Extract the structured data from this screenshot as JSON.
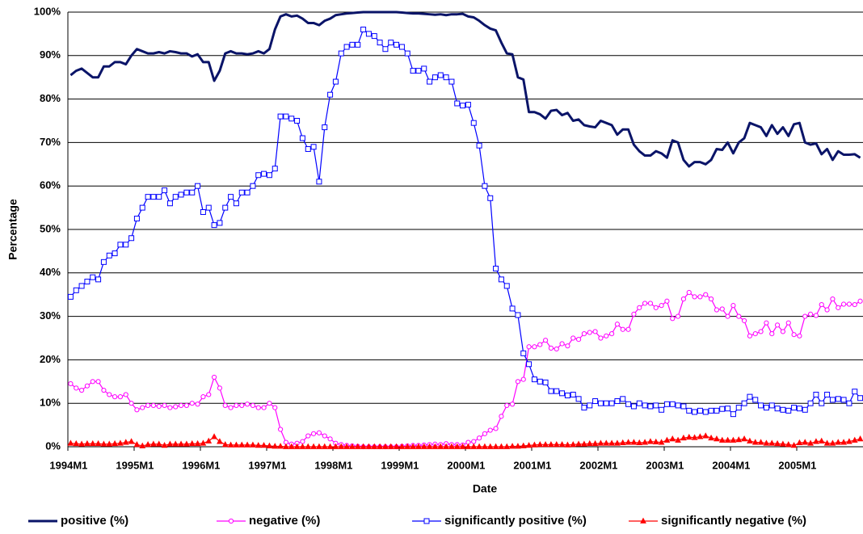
{
  "chart_data": {
    "type": "line",
    "x_label": "Date",
    "y_label": "Percentage",
    "categories": [
      "1994M1",
      null,
      null,
      null,
      null,
      null,
      null,
      null,
      null,
      null,
      null,
      null,
      "1995M1",
      null,
      null,
      null,
      null,
      null,
      null,
      null,
      null,
      null,
      null,
      null,
      "1996M1",
      null,
      null,
      null,
      null,
      null,
      null,
      null,
      null,
      null,
      null,
      null,
      "1997M1",
      null,
      null,
      null,
      null,
      null,
      null,
      null,
      null,
      null,
      null,
      null,
      "1998M1",
      null,
      null,
      null,
      null,
      null,
      null,
      null,
      null,
      null,
      null,
      null,
      "1999M1",
      null,
      null,
      null,
      null,
      null,
      null,
      null,
      null,
      null,
      null,
      null,
      "2000M1",
      null,
      null,
      null,
      null,
      null,
      null,
      null,
      null,
      null,
      null,
      null,
      "2001M1",
      null,
      null,
      null,
      null,
      null,
      null,
      null,
      null,
      null,
      null,
      null,
      "2002M1",
      null,
      null,
      null,
      null,
      null,
      null,
      null,
      null,
      null,
      null,
      null,
      "2003M1",
      null,
      null,
      null,
      null,
      null,
      null,
      null,
      null,
      null,
      null,
      null,
      "2004M1",
      null,
      null,
      null,
      null,
      null,
      null,
      null,
      null,
      null,
      null,
      null,
      "2005M1",
      null,
      null,
      null,
      null,
      null,
      null,
      null,
      null,
      null,
      null,
      null
    ],
    "ylim": [
      0,
      100
    ],
    "yticks": [
      {
        "value": 0,
        "label": "0%"
      },
      {
        "value": 10,
        "label": "10%"
      },
      {
        "value": 20,
        "label": "20%"
      },
      {
        "value": 30,
        "label": "30%"
      },
      {
        "value": 40,
        "label": "40%"
      },
      {
        "value": 50,
        "label": "50%"
      },
      {
        "value": 60,
        "label": "60%"
      },
      {
        "value": 70,
        "label": "70%"
      },
      {
        "value": 80,
        "label": "80%"
      },
      {
        "value": 90,
        "label": "90%"
      },
      {
        "value": 100,
        "label": "100%"
      }
    ],
    "grid": true,
    "legend": "bottom",
    "series": [
      {
        "name": "positive (%)",
        "color": "#0a1468",
        "marker": "none",
        "values": [
          85.5,
          86.5,
          87,
          86,
          85,
          85,
          87.5,
          87.5,
          88.5,
          88.5,
          88,
          90,
          91.5,
          91,
          90.5,
          90.5,
          90.8,
          90.5,
          91,
          90.8,
          90.5,
          90.5,
          89.8,
          90.3,
          88.5,
          88.5,
          84.2,
          86.5,
          90.5,
          91,
          90.5,
          90.5,
          90.3,
          90.5,
          91,
          90.5,
          91.5,
          96,
          99,
          99.5,
          99,
          99.2,
          98.5,
          97.5,
          97.5,
          97,
          98,
          98.5,
          99.3,
          99.5,
          99.7,
          99.8,
          99.9,
          100,
          100,
          100,
          100,
          100,
          100,
          100,
          99.9,
          99.8,
          99.7,
          99.7,
          99.6,
          99.5,
          99.4,
          99.5,
          99.3,
          99.5,
          99.5,
          99.6,
          99,
          98.8,
          98,
          97,
          96.2,
          95.8,
          93,
          90.5,
          90.3,
          85,
          84.5,
          77,
          77,
          76.5,
          75.5,
          77.3,
          77.5,
          76.3,
          76.8,
          75,
          75.3,
          74,
          73.7,
          73.5,
          75,
          74.5,
          74,
          71.8,
          73,
          73,
          69.5,
          68,
          67,
          67,
          68,
          67.5,
          66.5,
          70.5,
          70,
          66,
          64.5,
          65.5,
          65.5,
          65,
          66,
          68.5,
          68.3,
          70,
          67.5,
          70,
          71,
          74.5,
          74,
          73.5,
          71.5,
          74,
          72,
          73.5,
          71.5,
          74.2,
          74.5,
          70,
          69.5,
          69.8,
          67.3,
          68.5,
          66,
          68,
          67.2,
          67.2,
          67.3,
          66.5
        ]
      },
      {
        "name": "negative (%)",
        "color": "#ff00ff",
        "marker": "circle",
        "values": [
          14.5,
          13.5,
          13,
          14,
          15,
          15,
          13,
          12,
          11.5,
          11.5,
          12,
          10,
          8.5,
          9,
          9.5,
          9.5,
          9.3,
          9.5,
          9,
          9.2,
          9.5,
          9.5,
          10,
          9.8,
          11.5,
          12,
          16,
          13.5,
          9.5,
          9,
          9.5,
          9.5,
          9.8,
          9.5,
          9,
          9,
          10,
          9,
          4,
          1,
          0.6,
          0.8,
          1.2,
          2.5,
          3,
          3.2,
          2.5,
          1.8,
          0.8,
          0.5,
          0.3,
          0.2,
          0.1,
          0,
          0,
          0,
          0,
          0,
          0,
          0,
          0.1,
          0.2,
          0.3,
          0.3,
          0.4,
          0.5,
          0.6,
          0.5,
          0.7,
          0.5,
          0.5,
          0.4,
          1,
          1.2,
          2,
          3,
          3.8,
          4.2,
          7,
          9.5,
          9.8,
          15,
          15.5,
          23,
          23,
          23.5,
          24.5,
          22.7,
          22.5,
          23.7,
          23.2,
          25,
          24.7,
          26,
          26.3,
          26.5,
          25,
          25.5,
          26,
          28.2,
          27,
          27,
          30.5,
          32,
          33,
          33,
          32,
          32.5,
          33.5,
          29.5,
          30,
          34,
          35.5,
          34.5,
          34.5,
          35,
          34,
          31.5,
          31.7,
          30,
          32.5,
          30,
          29,
          25.5,
          26,
          26.5,
          28.5,
          26,
          28,
          26.5,
          28.5,
          25.8,
          25.5,
          30,
          30.5,
          30.2,
          32.7,
          31.5,
          34,
          32,
          32.8,
          32.8,
          32.7,
          33.5
        ]
      },
      {
        "name": "significantly positive (%)",
        "color": "#0000ff",
        "marker": "square",
        "values": [
          34.5,
          36,
          37,
          38,
          39,
          38.5,
          42.5,
          44,
          44.5,
          46.5,
          46.5,
          48,
          52.5,
          55,
          57.5,
          57.5,
          57.5,
          59,
          56,
          57.5,
          58,
          58.5,
          58.5,
          60,
          54,
          55,
          51,
          51.5,
          55,
          57.5,
          56,
          58.5,
          58.5,
          60,
          62.5,
          62.8,
          62.5,
          64,
          76,
          76,
          75.5,
          75,
          71,
          68.5,
          69,
          61,
          73.5,
          81,
          84,
          90.5,
          92,
          92.5,
          92.5,
          96,
          95,
          94.5,
          93,
          91.5,
          93,
          92.5,
          92,
          90.5,
          86.5,
          86.5,
          87,
          84,
          85,
          85.5,
          85,
          84,
          79,
          78.5,
          78.7,
          74.5,
          69.3,
          60,
          57.2,
          41,
          38.5,
          37,
          31.8,
          30.3,
          21.5,
          19,
          15.5,
          15,
          14.8,
          12.8,
          12.8,
          12.3,
          11.8,
          12,
          11,
          9,
          9.5,
          10.5,
          10,
          10,
          10,
          10.5,
          11,
          9.8,
          9.3,
          10,
          9.5,
          9.3,
          9.5,
          8.5,
          9.8,
          9.8,
          9.5,
          9.3,
          8.3,
          8,
          8.3,
          8,
          8.3,
          8.3,
          8.7,
          8.8,
          7.5,
          9,
          10,
          11.5,
          10.8,
          9.5,
          9,
          9.5,
          8.8,
          8.5,
          8.3,
          9,
          8.8,
          8.5,
          10,
          12,
          10,
          12,
          10.8,
          11,
          10.8,
          10,
          12.7,
          11.2
        ]
      },
      {
        "name": "significantly negative (%)",
        "color": "#ff0000",
        "marker": "triangle",
        "values": [
          0.8,
          0.7,
          0.6,
          0.7,
          0.7,
          0.7,
          0.6,
          0.6,
          0.7,
          0.8,
          1,
          1.2,
          0.5,
          0.2,
          0.5,
          0.6,
          0.6,
          0.3,
          0.6,
          0.6,
          0.6,
          0.6,
          0.7,
          0.7,
          0.8,
          1.3,
          2.3,
          1.2,
          0.5,
          0.4,
          0.4,
          0.4,
          0.4,
          0.4,
          0.3,
          0.3,
          0.2,
          0.1,
          0.1,
          0,
          0,
          0,
          0,
          0,
          0,
          0,
          0,
          0,
          0,
          0,
          0,
          0,
          0,
          0,
          0,
          0,
          0,
          0,
          0,
          0,
          0,
          0,
          0,
          0,
          0,
          0,
          0,
          0,
          0,
          0,
          0,
          0,
          0,
          0,
          0,
          0,
          0,
          0,
          0,
          0,
          0.1,
          0.1,
          0.2,
          0.3,
          0.4,
          0.5,
          0.5,
          0.5,
          0.5,
          0.5,
          0.4,
          0.5,
          0.6,
          0.6,
          0.7,
          0.7,
          0.8,
          0.8,
          0.8,
          0.8,
          0.9,
          1,
          1,
          0.9,
          1,
          1.2,
          1.1,
          1,
          1.5,
          1.8,
          1.5,
          2,
          2.2,
          2.1,
          2.3,
          2.5,
          2,
          1.8,
          1.5,
          1.5,
          1.5,
          1.6,
          1.8,
          1.3,
          1,
          1,
          0.8,
          0.8,
          0.7,
          0.6,
          0.5,
          0.3,
          0.9,
          1,
          0.8,
          1.2,
          1.3,
          0.8,
          0.8,
          1,
          1,
          1.2,
          1.5,
          1.8
        ]
      }
    ]
  }
}
